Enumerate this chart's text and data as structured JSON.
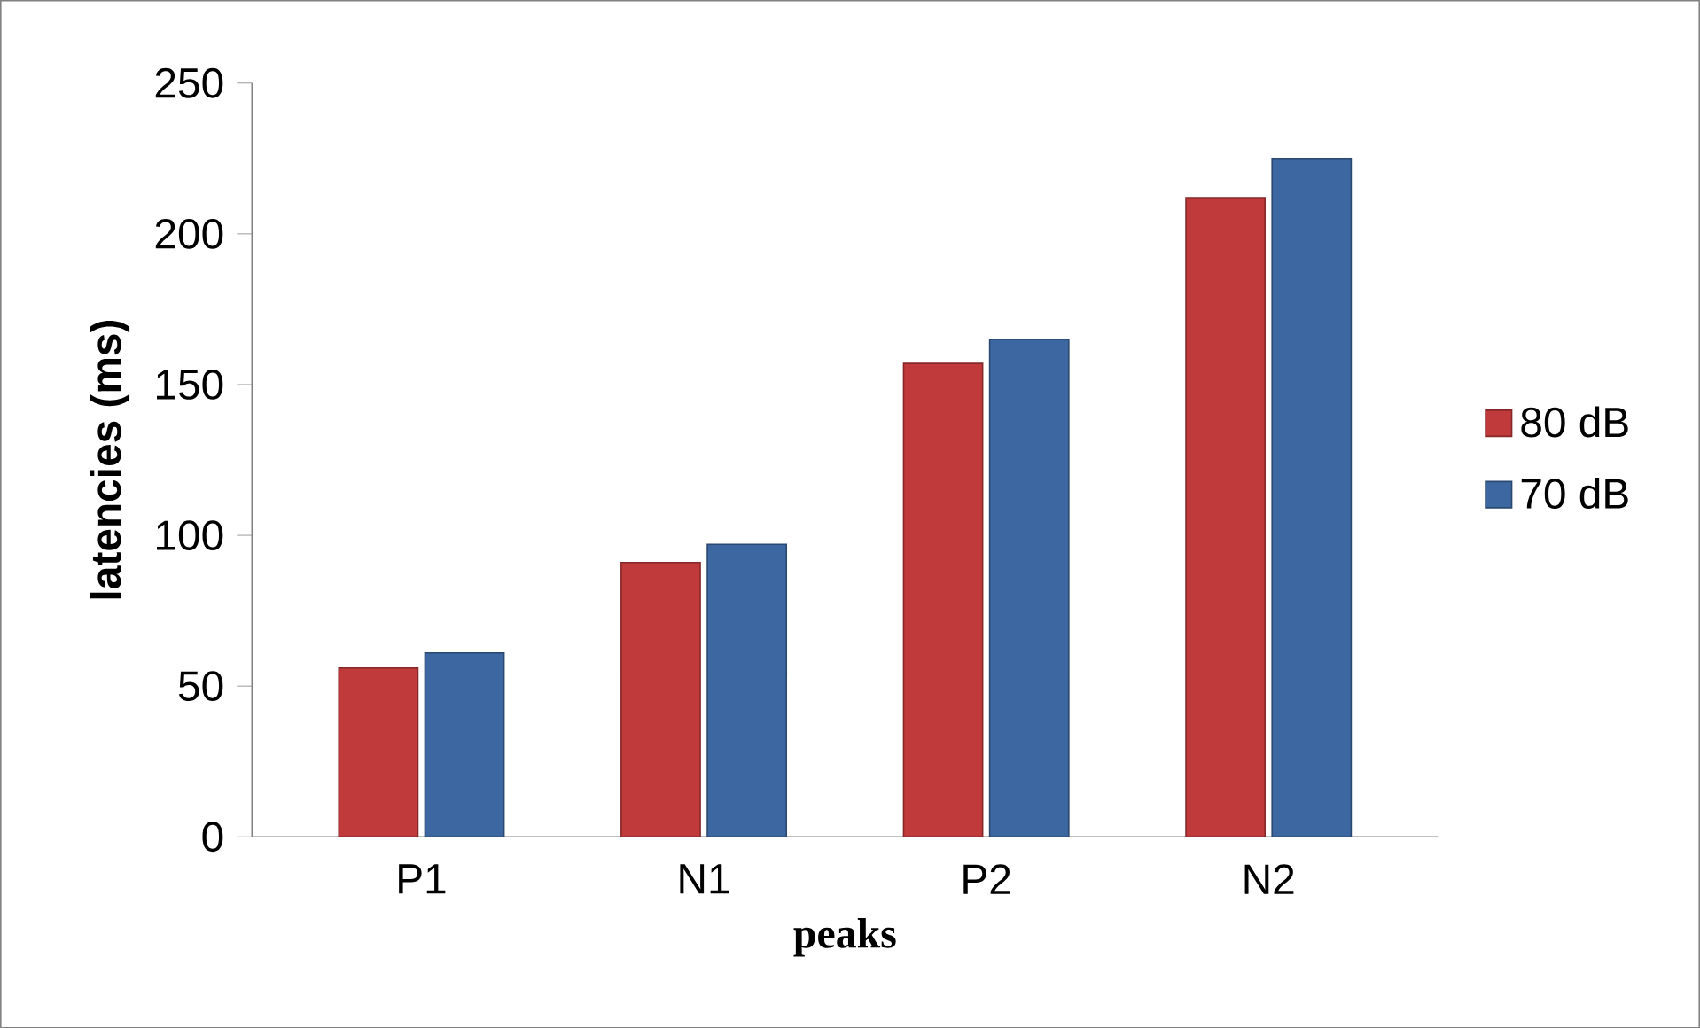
{
  "chart_data": {
    "type": "bar",
    "xlabel": "peaks",
    "ylabel": "latencies (ms)",
    "categories": [
      "P1",
      "N1",
      "P2",
      "N2"
    ],
    "series": [
      {
        "name": "80 dB",
        "color": "#c0393b",
        "values": [
          56,
          91,
          157,
          212
        ]
      },
      {
        "name": "70 dB",
        "color": "#3c67a0",
        "values": [
          61,
          97,
          165,
          225
        ]
      }
    ],
    "ylim": [
      0,
      250
    ],
    "yticks": [
      0,
      50,
      100,
      150,
      200,
      250
    ],
    "grid": false,
    "legend": "right"
  }
}
